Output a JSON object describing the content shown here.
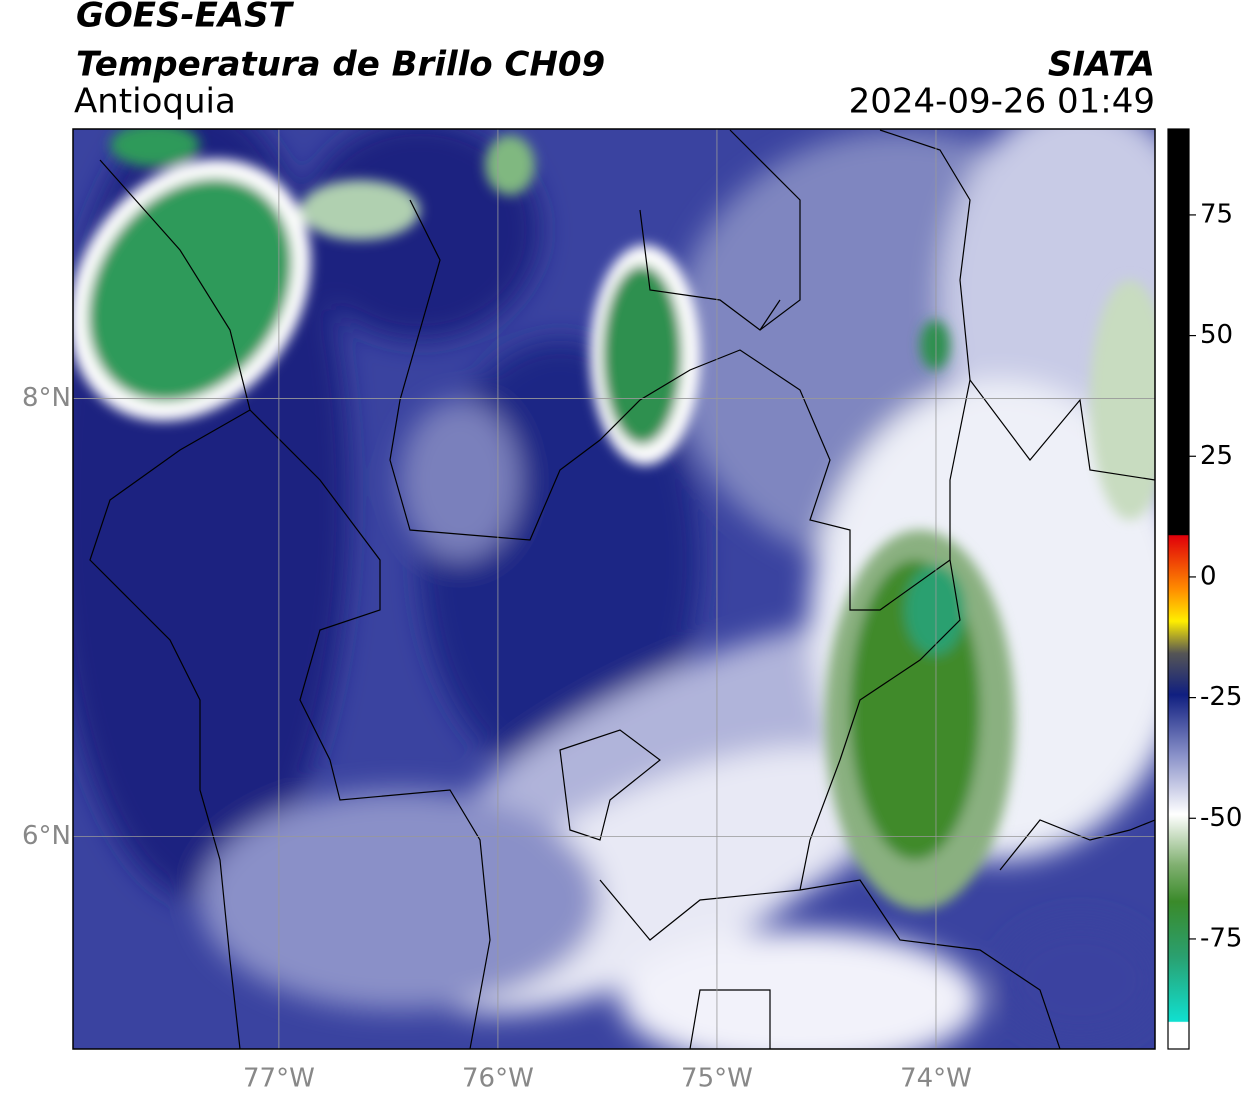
{
  "header": {
    "title": "GOES-EAST",
    "subtitle": "Temperatura de Brillo CH09",
    "region": "Antioquia",
    "source": "SIATA",
    "datetime": "2024-09-26 01:49"
  },
  "map": {
    "xlim": [
      -77.94,
      -73.0
    ],
    "ylim": [
      5.03,
      9.23
    ],
    "xticks": [
      {
        "value": -77,
        "label": "77°W"
      },
      {
        "value": -76,
        "label": "76°W"
      },
      {
        "value": -75,
        "label": "75°W"
      },
      {
        "value": -74,
        "label": "74°W"
      }
    ],
    "yticks": [
      {
        "value": 8,
        "label": "8°N"
      },
      {
        "value": 6,
        "label": "6°N"
      }
    ]
  },
  "colorbar": {
    "lim": [
      -97.8,
      92.8
    ],
    "ticks": [
      75,
      50,
      25,
      0,
      -25,
      -50,
      -75
    ]
  }
}
